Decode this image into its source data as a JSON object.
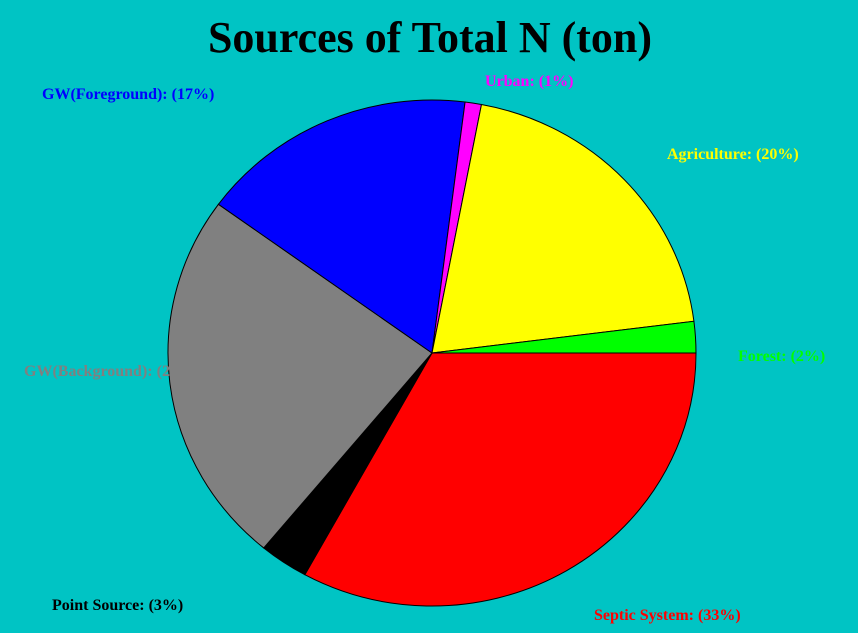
{
  "chart_data": {
    "type": "pie",
    "title": "Sources of Total N (ton)",
    "values": [
      33,
      3,
      24,
      17,
      1,
      20,
      2
    ],
    "value_labels": [
      "Septic System: (33%)",
      "Point Source: (3%)",
      "GW(Background): (24%)",
      "GW(Foreground): (17%)",
      "Urban: (1%)",
      "Agriculture: (20%)",
      "Forest: (2%)"
    ],
    "colors": [
      "#ff0000",
      "#000000",
      "#808080",
      "#0000ff",
      "#ff00ff",
      "#ffff00",
      "#00ff00"
    ]
  }
}
